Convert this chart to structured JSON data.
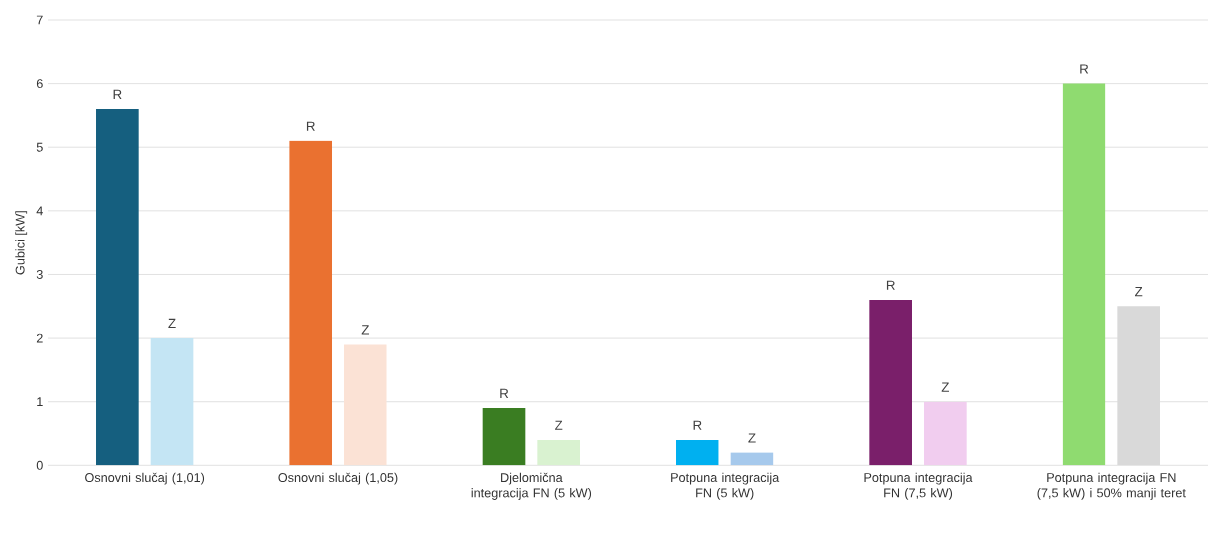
{
  "chart_data": {
    "type": "bar",
    "ylabel": "Gubici [kW]",
    "categories": [
      "Osnovni slučaj (1,01)",
      "Osnovni slučaj (1,05)",
      "Djelomična integracija FN (5 kW)",
      "Potpuna integracija FN (5 kW)",
      "Potpuna integracija FN (7,5 kW)",
      "Potpuna integracija FN (7,5 kW) i 50% manji teret"
    ],
    "series": [
      {
        "name": "R",
        "colors": [
          "#155f7f",
          "#ea7130",
          "#3a7d22",
          "#00b0f0",
          "#7a1f6a",
          "#8fdb70"
        ],
        "values": [
          5.6,
          5.1,
          0.9,
          0.4,
          2.6,
          6.0
        ]
      },
      {
        "name": "Z",
        "colors": [
          "#c4e5f4",
          "#fbe2d5",
          "#d9f2d0",
          "#a6c9ec",
          "#f1cdef",
          "#d9d9d9"
        ],
        "values": [
          2.0,
          1.9,
          0.4,
          0.2,
          1.0,
          2.5
        ]
      }
    ],
    "ylim": [
      0,
      7
    ],
    "yticks": [
      0,
      1,
      2,
      3,
      4,
      5,
      6,
      7
    ],
    "grid": "y"
  }
}
